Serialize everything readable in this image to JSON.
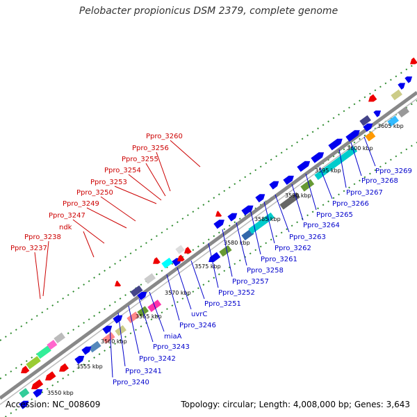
{
  "title": "Pelobacter propionicus DSM 2379, complete genome",
  "accession": "Accession: NC_008609",
  "summary": "Topology: circular; Length: 4,008,000 bp; Genes: 3,643",
  "kbp_ticks": [
    "3550 kbp",
    "3555 kbp",
    "3560 kbp",
    "3565 kbp",
    "3570 kbp",
    "3575 kbp",
    "3580 kbp",
    "3585 kbp",
    "3590 kbp",
    "3595 kbp",
    "3600 kbp",
    "3605 kbp"
  ],
  "top_labels": [
    "Ppro_3260",
    "Ppro_3256",
    "Ppro_3255",
    "Ppro_3254",
    "Ppro_3253",
    "Ppro_3250",
    "Ppro_3249",
    "Ppro_3247",
    "ndk",
    "Ppro_3238",
    "Ppro_3237"
  ],
  "bottom_labels": [
    "Ppro_3269",
    "Ppro_3268",
    "Ppro_3267",
    "Ppro_3266",
    "Ppro_3265",
    "Ppro_3264",
    "Ppro_3263",
    "Ppro_3262",
    "Ppro_3261",
    "Ppro_3258",
    "Ppro_3257",
    "Ppro_3252",
    "Ppro_3251",
    "uvrC",
    "Ppro_3246",
    "miaA",
    "Ppro_3243",
    "Ppro_3242",
    "Ppro_3241",
    "Ppro_3240"
  ],
  "colors": {
    "top_label": "#cc0000",
    "bottom_label": "#0000cc",
    "backbone": "#888888",
    "grid_dot": "#2e8b2e",
    "forward_gene": "#0000ee",
    "reverse_gene": "#ee0000"
  }
}
